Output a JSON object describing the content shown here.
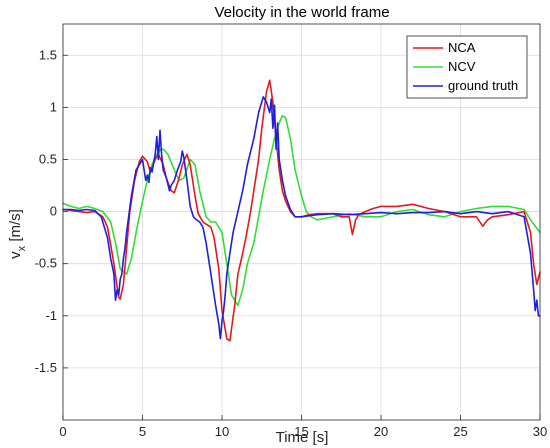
{
  "chart_data": {
    "type": "line",
    "title": "Velocity in the world frame",
    "xlabel": "Time [s]",
    "ylabel_main": "v",
    "ylabel_sub": "x",
    "ylabel_unit": " [m/s]",
    "xlim": [
      0,
      30
    ],
    "ylim": [
      -2,
      1.8
    ],
    "xticks": [
      0,
      5,
      10,
      15,
      20,
      25,
      30
    ],
    "xtick_labels": [
      "0",
      "5",
      "10",
      "15",
      "20",
      "25",
      "30"
    ],
    "yticks": [
      -1.5,
      -1,
      -0.5,
      0,
      0.5,
      1,
      1.5
    ],
    "ytick_labels": [
      "-1.5",
      "-1",
      "-0.5",
      "0",
      "0.5",
      "1",
      "1.5"
    ],
    "grid": true,
    "legend_position": "top-right",
    "series": [
      {
        "name": "NCA",
        "color": "#e31a1c",
        "x": [
          0,
          0.5,
          1,
          1.5,
          2,
          2.5,
          2.8,
          3.0,
          3.2,
          3.4,
          3.5,
          3.6,
          3.8,
          4.0,
          4.2,
          4.5,
          4.8,
          5.0,
          5.3,
          5.5,
          5.8,
          6.0,
          6.3,
          6.5,
          6.8,
          7.0,
          7.3,
          7.5,
          7.8,
          8.0,
          8.3,
          8.5,
          8.8,
          9.0,
          9.3,
          9.5,
          9.8,
          10.0,
          10.3,
          10.5,
          10.8,
          11.0,
          11.3,
          11.5,
          11.8,
          12.0,
          12.3,
          12.5,
          12.8,
          13.0,
          13.2,
          13.4,
          13.6,
          13.8,
          14.0,
          14.3,
          14.6,
          15.0,
          15.5,
          16.0,
          17.0,
          17.5,
          18.0,
          18.2,
          18.4,
          18.6,
          19.0,
          19.5,
          20.0,
          21.0,
          22.0,
          23.0,
          24.0,
          25.0,
          26.0,
          26.4,
          26.7,
          27.0,
          28.0,
          29.0,
          29.4,
          29.6,
          29.8,
          30.0
        ],
        "y": [
          0.02,
          0.01,
          0.0,
          -0.01,
          0.0,
          -0.05,
          -0.15,
          -0.32,
          -0.5,
          -0.72,
          -0.82,
          -0.84,
          -0.7,
          -0.35,
          0.0,
          0.3,
          0.48,
          0.53,
          0.48,
          0.38,
          0.5,
          0.55,
          0.45,
          0.32,
          0.2,
          0.18,
          0.32,
          0.45,
          0.55,
          0.45,
          0.15,
          -0.02,
          -0.1,
          -0.12,
          -0.15,
          -0.25,
          -0.55,
          -0.95,
          -1.22,
          -1.24,
          -0.9,
          -0.6,
          -0.4,
          -0.25,
          0.0,
          0.2,
          0.5,
          0.8,
          1.15,
          1.26,
          1.05,
          0.7,
          0.4,
          0.2,
          0.1,
          0.0,
          -0.05,
          -0.05,
          -0.03,
          -0.02,
          -0.02,
          -0.05,
          -0.05,
          -0.22,
          -0.08,
          -0.03,
          0.0,
          0.03,
          0.05,
          0.05,
          0.07,
          0.03,
          0.0,
          -0.05,
          -0.05,
          -0.14,
          -0.08,
          -0.05,
          -0.03,
          0.0,
          -0.2,
          -0.5,
          -0.7,
          -0.58
        ]
      },
      {
        "name": "NCV",
        "color": "#33dd33",
        "x": [
          0,
          0.5,
          1,
          1.5,
          2,
          2.5,
          3.0,
          3.3,
          3.6,
          4.0,
          4.3,
          4.6,
          5.0,
          5.3,
          5.6,
          6.0,
          6.3,
          6.6,
          7.0,
          7.3,
          7.6,
          8.0,
          8.3,
          8.6,
          9.0,
          9.3,
          9.6,
          10.0,
          10.3,
          10.6,
          11.0,
          11.3,
          11.6,
          12.0,
          12.3,
          12.6,
          13.0,
          13.3,
          13.6,
          13.8,
          14.0,
          14.3,
          14.6,
          15.0,
          15.3,
          15.6,
          16.0,
          17.0,
          18.0,
          19.0,
          20.0,
          21.0,
          22.0,
          23.0,
          24.0,
          25.0,
          26.0,
          27.0,
          28.0,
          29.0,
          29.5,
          30.0
        ],
        "y": [
          0.08,
          0.05,
          0.03,
          0.05,
          0.03,
          0.0,
          -0.1,
          -0.3,
          -0.55,
          -0.6,
          -0.45,
          -0.2,
          0.1,
          0.3,
          0.45,
          0.58,
          0.6,
          0.55,
          0.4,
          0.3,
          0.32,
          0.5,
          0.45,
          0.2,
          -0.05,
          -0.1,
          -0.1,
          -0.2,
          -0.5,
          -0.8,
          -0.9,
          -0.75,
          -0.5,
          -0.3,
          -0.05,
          0.2,
          0.5,
          0.7,
          0.85,
          0.92,
          0.9,
          0.7,
          0.4,
          0.15,
          0.0,
          -0.05,
          -0.08,
          -0.05,
          -0.02,
          -0.05,
          -0.05,
          0.0,
          0.02,
          -0.03,
          -0.05,
          0.0,
          0.03,
          0.05,
          0.05,
          0.02,
          -0.1,
          -0.2
        ]
      },
      {
        "name": "ground truth",
        "color": "#1f1fe0",
        "x": [
          0,
          0.5,
          1,
          1.5,
          2,
          2.4,
          2.8,
          3.0,
          3.2,
          3.3,
          3.4,
          3.5,
          3.6,
          3.7,
          3.8,
          3.9,
          4.0,
          4.3,
          4.6,
          4.8,
          5.0,
          5.1,
          5.2,
          5.3,
          5.4,
          5.5,
          5.6,
          5.8,
          5.9,
          6.0,
          6.1,
          6.2,
          6.3,
          6.5,
          6.7,
          6.8,
          7.0,
          7.2,
          7.4,
          7.5,
          7.6,
          7.8,
          8.0,
          8.2,
          8.4,
          8.6,
          8.8,
          9.0,
          9.3,
          9.6,
          9.8,
          9.9,
          10.0,
          10.1,
          10.2,
          10.3,
          10.5,
          10.7,
          11.0,
          11.3,
          11.6,
          12.0,
          12.3,
          12.6,
          12.8,
          13.0,
          13.1,
          13.2,
          13.3,
          13.4,
          13.5,
          13.6,
          13.8,
          14.0,
          14.3,
          14.6,
          15.0,
          15.5,
          16.0,
          17.0,
          18.0,
          19.0,
          20.0,
          21.0,
          22.0,
          23.0,
          24.0,
          25.0,
          26.0,
          27.0,
          28.0,
          29.0,
          29.4,
          29.6,
          29.7,
          29.8,
          29.9,
          30.0
        ],
        "y": [
          0.02,
          0.02,
          0.01,
          0.02,
          0.01,
          -0.05,
          -0.25,
          -0.45,
          -0.6,
          -0.85,
          -0.75,
          -0.8,
          -0.65,
          -0.6,
          -0.45,
          -0.35,
          -0.2,
          0.15,
          0.4,
          0.45,
          0.5,
          0.4,
          0.3,
          0.35,
          0.28,
          0.42,
          0.38,
          0.55,
          0.72,
          0.5,
          0.78,
          0.55,
          0.4,
          0.32,
          0.2,
          0.25,
          0.3,
          0.4,
          0.48,
          0.58,
          0.52,
          0.3,
          0.05,
          -0.05,
          -0.08,
          -0.1,
          -0.15,
          -0.3,
          -0.6,
          -0.9,
          -1.08,
          -1.22,
          -1.05,
          -0.95,
          -0.8,
          -0.6,
          -0.4,
          -0.2,
          0.0,
          0.2,
          0.45,
          0.7,
          0.95,
          1.1,
          1.05,
          0.95,
          1.08,
          0.8,
          1.02,
          0.6,
          0.85,
          0.5,
          0.3,
          0.15,
          0.02,
          -0.05,
          -0.05,
          -0.04,
          -0.03,
          -0.02,
          -0.03,
          -0.02,
          -0.01,
          -0.02,
          -0.01,
          -0.01,
          0.0,
          -0.02,
          0.0,
          -0.02,
          0.0,
          -0.05,
          -0.4,
          -0.75,
          -0.95,
          -0.85,
          -1.0,
          -1.0
        ]
      }
    ]
  }
}
